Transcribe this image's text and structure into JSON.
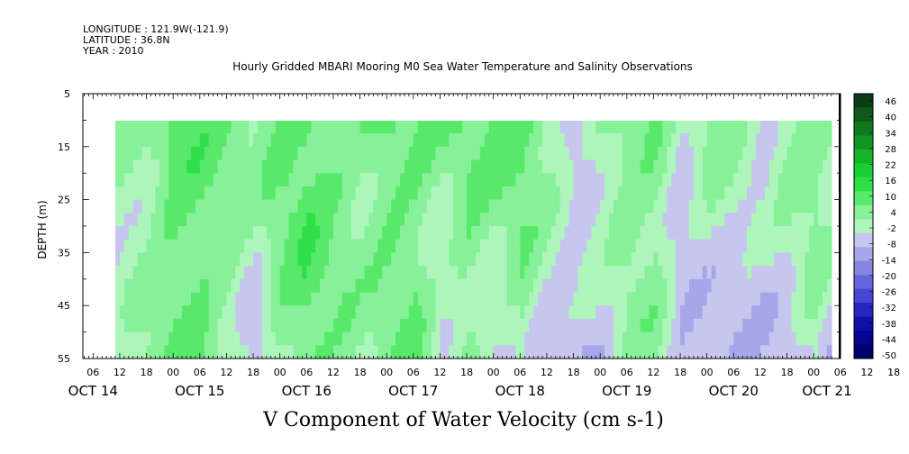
{
  "header": {
    "longitude": "LONGITUDE : 121.9W(-121.9)",
    "latitude": "LATITUDE : 36.8N",
    "year": "YEAR : 2010"
  },
  "chart_data": {
    "type": "heatmap",
    "title": "Hourly Gridded MBARI Mooring M0 Sea Water Temperature and Salinity Observations",
    "xlabel": "",
    "ylabel": "DEPTH (m)",
    "bottom_title": "V Component of Water Velocity (cm s-1)",
    "ylim": [
      55,
      5
    ],
    "y_ticks": [
      "5",
      "15",
      "25",
      "35",
      "45",
      "55"
    ],
    "x_hour_ticks": [
      "06",
      "12",
      "18",
      "00",
      "06",
      "12",
      "18",
      "00",
      "06",
      "12",
      "18",
      "00",
      "06",
      "12",
      "18",
      "00",
      "06",
      "12",
      "18",
      "00",
      "06",
      "12",
      "18",
      "00",
      "06",
      "12",
      "18",
      "00",
      "06",
      "12",
      "18",
      "00"
    ],
    "x_day_labels": [
      "OCT 14",
      "OCT 15",
      "OCT 16",
      "OCT 17",
      "OCT 18",
      "OCT 19",
      "OCT 20",
      "OCT 21"
    ],
    "data_depth_range": [
      10,
      55
    ],
    "colorbar": {
      "labels": [
        "46",
        "40",
        "34",
        "28",
        "22",
        "16",
        "10",
        "4",
        "-2",
        "-8",
        "-14",
        "-20",
        "-26",
        "-32",
        "-38",
        "-44",
        "-50"
      ],
      "colors": [
        "#0b3d13",
        "#0d5a1a",
        "#10781f",
        "#129623",
        "#14b42a",
        "#18cf32",
        "#2fdf48",
        "#58e96b",
        "#86f199",
        "#aef5bc",
        "#c6c6ee",
        "#a6a6ea",
        "#8686e2",
        "#6666dc",
        "#4646d2",
        "#2626c0",
        "#1010a8",
        "#060690",
        "#000070"
      ]
    },
    "columns": [
      {
        "hour": "OCT 14 11:00",
        "top": 6,
        "bottom": -4
      },
      {
        "hour": "OCT 14 17:00",
        "top": 3,
        "bottom": 4
      },
      {
        "hour": "OCT 15 00:00",
        "top": 12,
        "bottom": 8
      },
      {
        "hour": "OCT 15 06:00",
        "top": 10,
        "bottom": 9
      },
      {
        "hour": "OCT 15 12:00",
        "top": 8,
        "bottom": 4
      },
      {
        "hour": "OCT 15 18:00",
        "top": 6,
        "bottom": -6
      },
      {
        "hour": "OCT 16 00:00",
        "top": 10,
        "bottom": 6
      },
      {
        "hour": "OCT 16 06:00",
        "top": 12,
        "bottom": 11
      },
      {
        "hour": "OCT 16 12:00",
        "top": 9,
        "bottom": 6
      },
      {
        "hour": "OCT 16 18:00",
        "top": 7,
        "bottom": 3
      },
      {
        "hour": "OCT 17 00:00",
        "top": 11,
        "bottom": 6
      },
      {
        "hour": "OCT 17 06:00",
        "top": 8,
        "bottom": 9
      },
      {
        "hour": "OCT 17 12:00",
        "top": 6,
        "bottom": -3
      },
      {
        "hour": "OCT 17 18:00",
        "top": 9,
        "bottom": 5
      },
      {
        "hour": "OCT 18 00:00",
        "top": 10,
        "bottom": -4
      },
      {
        "hour": "OCT 18 06:00",
        "top": 11,
        "bottom": 4
      },
      {
        "hour": "OCT 18 12:00",
        "top": 7,
        "bottom": -6
      },
      {
        "hour": "OCT 18 18:00",
        "top": -4,
        "bottom": -5
      },
      {
        "hour": "OCT 19 00:00",
        "top": 5,
        "bottom": -6
      },
      {
        "hour": "OCT 19 06:00",
        "top": 9,
        "bottom": 3
      },
      {
        "hour": "OCT 19 12:00",
        "top": 8,
        "bottom": 4
      },
      {
        "hour": "OCT 19 18:00",
        "top": -3,
        "bottom": -6
      },
      {
        "hour": "OCT 20 00:00",
        "top": 6,
        "bottom": -7
      },
      {
        "hour": "OCT 20 06:00",
        "top": 4,
        "bottom": -8
      },
      {
        "hour": "OCT 20 12:00",
        "top": -3,
        "bottom": -4
      },
      {
        "hour": "OCT 20 18:00",
        "top": 6,
        "bottom": -6
      },
      {
        "hour": "OCT 21 00:00",
        "top": 8,
        "bottom": 2
      },
      {
        "hour": "OCT 21 03:00",
        "top": 6,
        "bottom": -4
      }
    ]
  }
}
